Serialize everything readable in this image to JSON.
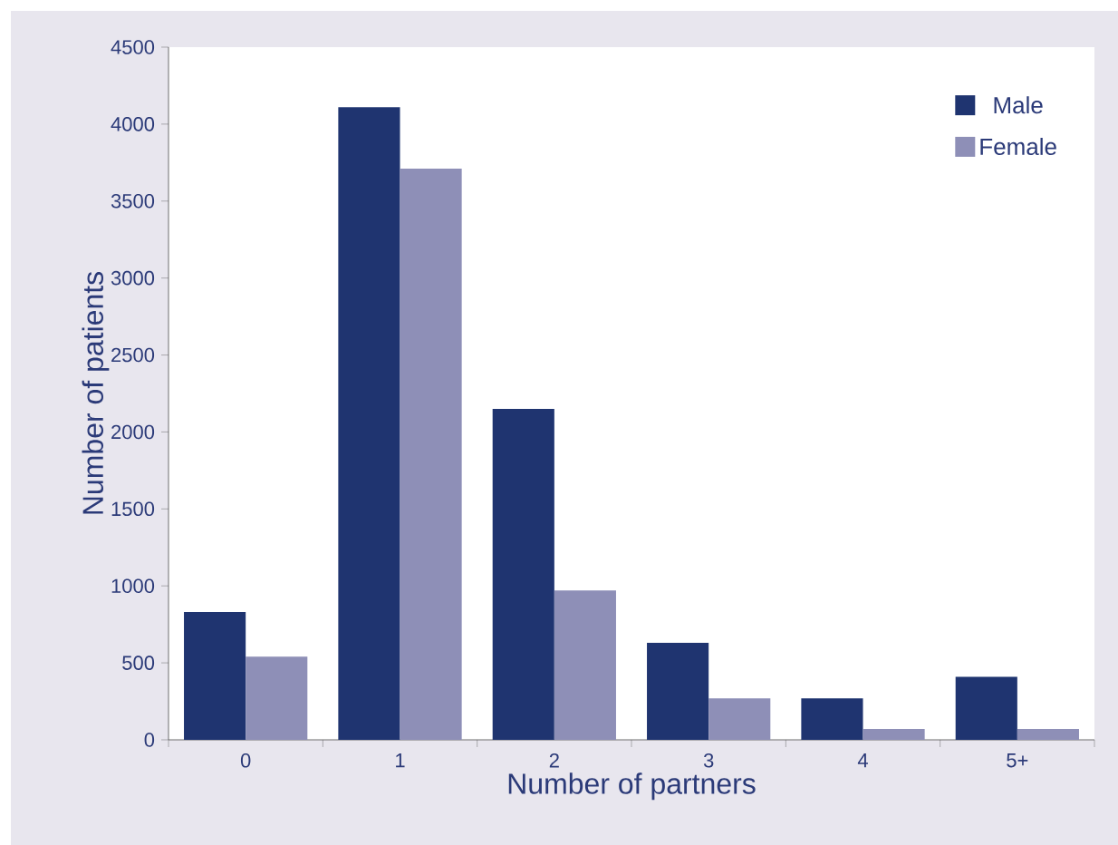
{
  "chart_data": {
    "type": "bar",
    "xlabel": "Number of partners",
    "ylabel": "Number of patients",
    "categories": [
      "0",
      "1",
      "2",
      "3",
      "4",
      "5+"
    ],
    "series": [
      {
        "name": "Male",
        "color": "#1f3470",
        "values": [
          830,
          4110,
          2150,
          630,
          270,
          410
        ]
      },
      {
        "name": "Female",
        "color": "#8e8fb7",
        "values": [
          540,
          3710,
          970,
          270,
          70,
          70
        ]
      }
    ],
    "ylim": [
      0,
      4500
    ],
    "yticks": [
      0,
      500,
      1000,
      1500,
      2000,
      2500,
      3000,
      3500,
      4000,
      4500
    ],
    "grid": false,
    "legend": "top right"
  }
}
